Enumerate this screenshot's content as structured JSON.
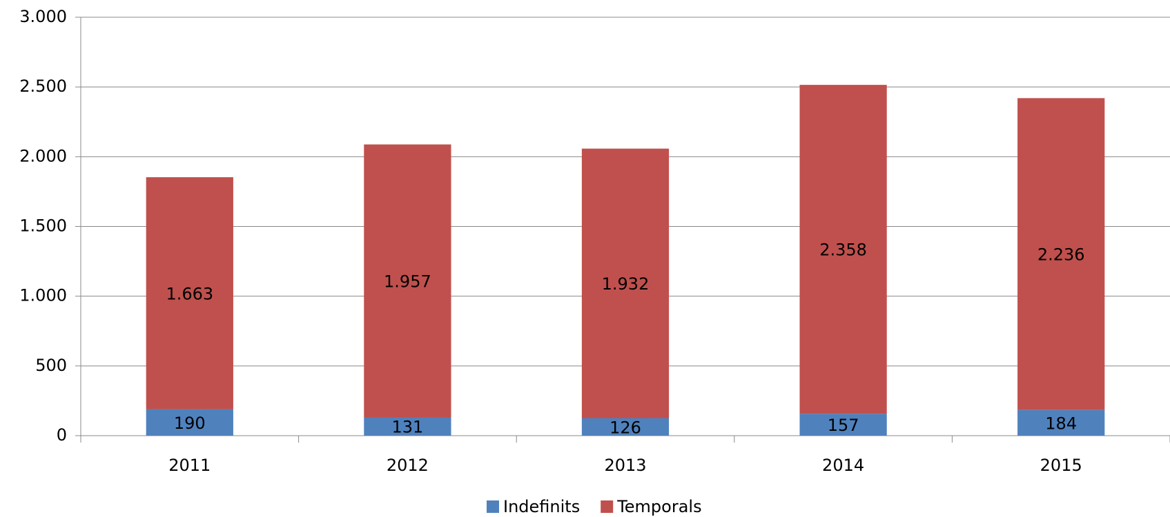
{
  "chart_data": {
    "type": "stacked_bar",
    "categories": [
      "2011",
      "2012",
      "2013",
      "2014",
      "2015"
    ],
    "series": [
      {
        "name": "Indefinits",
        "color": "#4f81bd",
        "values": [
          190,
          131,
          126,
          157,
          184
        ]
      },
      {
        "name": "Temporals",
        "color": "#c0504d",
        "values": [
          1663,
          1957,
          1932,
          2358,
          2236
        ],
        "value_labels": [
          "1.663",
          "1.957",
          "1.932",
          "2.358",
          "2.236"
        ]
      }
    ],
    "ylim": [
      0,
      3000
    ],
    "yticks": [
      0,
      500,
      {
        "value": 1000,
        "label": "1.000"
      },
      {
        "value": 1500,
        "label": "1.500"
      },
      {
        "value": 2000,
        "label": "2.000"
      },
      {
        "value": 2500,
        "label": "2.500"
      },
      {
        "value": 3000,
        "label": "3.000"
      }
    ],
    "grid": true,
    "legend": "bottom"
  }
}
